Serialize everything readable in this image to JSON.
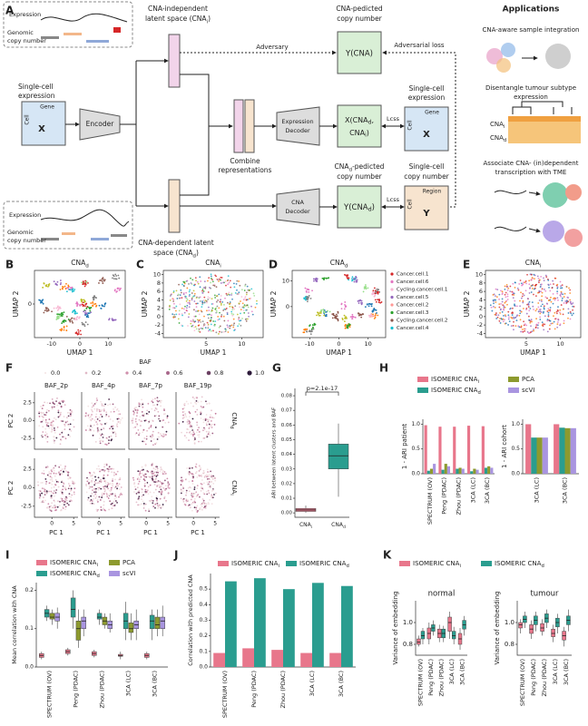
{
  "A": {
    "label": "A",
    "top_inset": [
      "Expression",
      "Genomic",
      "copy number"
    ],
    "bottom_inset": [
      "Expression",
      "Genomic",
      "copy number"
    ],
    "input_title": [
      "Single-cell",
      "expression"
    ],
    "input_gene": "Gene",
    "input_cell": "Cell",
    "input_symbol": "X",
    "encoder": "Encoder",
    "latent_i": [
      "CNA-independent",
      [
        "latent space (CNA",
        "i",
        ")"
      ]
    ],
    "latent_d": [
      "CNA-dependent latent",
      [
        "space (CNA",
        "d",
        ")"
      ]
    ],
    "adversary": "Adversary",
    "adversarial_loss": "Adversarial loss",
    "y_cna_title": [
      "CNA-pedicted",
      "copy number"
    ],
    "y_cna": "Y(CNA)",
    "combine": [
      "Combine",
      "representations"
    ],
    "expr_decoder": [
      "Expression",
      "Decoder"
    ],
    "x_recon": [
      [
        "X(CNA",
        "d",
        ","
      ],
      [
        "CNA",
        "i",
        ")"
      ]
    ],
    "loss_top": "Lcss",
    "loss_bottom": "Lcss",
    "target_expr_title": [
      "Single-cell",
      "expression"
    ],
    "target_expr_gene": "Gene",
    "target_expr_cell": "Cell",
    "target_expr_symbol": "X",
    "cna_decoder": [
      "CNA",
      "Decoder"
    ],
    "y_cnad_title": [
      [
        "CNA",
        "d",
        "-pedicted"
      ],
      "copy number"
    ],
    "y_cnad": [
      "Y(CNA",
      "d",
      ")"
    ],
    "target_cn_title": [
      "Single-cell",
      "copy number"
    ],
    "target_cn_region": "Region",
    "target_cn_cell": "Cell",
    "target_cn_symbol": "Y",
    "applications": "Applications",
    "app1": "CNA-aware sample integration",
    "app2": [
      "Disentangle tumour subtype",
      "expression"
    ],
    "app2_rows": [
      [
        "CNA",
        "i"
      ],
      [
        "CNA",
        "d"
      ]
    ],
    "app3": [
      "Associate CNA- (in)dependent",
      "transcription with TME"
    ]
  },
  "umap": [
    {
      "label": "B",
      "title": [
        "CNA",
        "d"
      ],
      "xlabel": "UMAP 1",
      "ylabel": "UMAP 2",
      "xlim": [
        -16,
        16
      ],
      "xticks": [
        -10,
        0,
        10
      ],
      "ylim": [
        -12,
        12
      ],
      "yticks": [
        0
      ]
    },
    {
      "label": "C",
      "title": [
        "CNA",
        "i"
      ],
      "xlabel": "UMAP 1",
      "ylabel": "UMAP 2",
      "xlim": [
        -1,
        13
      ],
      "xticks": [
        5,
        10
      ],
      "ylim": [
        -5,
        11
      ],
      "yticks": [
        -4,
        -2,
        0,
        2,
        4,
        6,
        8,
        10
      ]
    },
    {
      "label": "D",
      "title": [
        "CNA",
        "d"
      ],
      "xlabel": "UMAP 1",
      "ylabel": "UMAP 2",
      "xlim": [
        -16,
        16
      ],
      "xticks": [
        -10,
        0,
        10
      ],
      "ylim": [
        -12,
        14
      ],
      "yticks": [
        0,
        10
      ],
      "legend": [
        {
          "name": "Cancer.cell.1",
          "color": "#d62728"
        },
        {
          "name": "Cancer.cell.6",
          "color": "#e377c2"
        },
        {
          "name": "Cycling.cancer.cell.1",
          "color": "#f7b6d2"
        },
        {
          "name": "Cancer.cell.5",
          "color": "#9467bd"
        },
        {
          "name": "Cancer.cell.2",
          "color": "#ff9896"
        },
        {
          "name": "Cancer.cell.3",
          "color": "#2ca02c"
        },
        {
          "name": "Cycling.cancer.cell.2",
          "color": "#8c564b"
        },
        {
          "name": "Cancer.cell.4",
          "color": "#17becf"
        }
      ]
    },
    {
      "label": "E",
      "title": [
        "CNA",
        "i"
      ],
      "xlabel": "UMAP 1",
      "ylabel": "UMAP 2",
      "xlim": [
        -1,
        13
      ],
      "xticks": [
        5,
        10
      ],
      "ylim": [
        -5,
        11
      ],
      "yticks": [
        -4,
        -2,
        0,
        2,
        4,
        6,
        8,
        10
      ]
    }
  ],
  "F": {
    "label": "F",
    "legend_title": "BAF",
    "legend": [
      {
        "value": 0,
        "label": "0.0"
      },
      0.2,
      0.4,
      0.6,
      0.8,
      {
        "value": 1,
        "label": "1.0"
      }
    ],
    "panels": [
      "BAF_2p",
      "BAF_4p",
      "BAF_7p",
      "BAF_19p"
    ],
    "rows": [
      [
        "CNA",
        "d"
      ],
      [
        "CNA",
        "i"
      ]
    ],
    "ylabel": "PC 2",
    "xlabel": "PC 1",
    "xlim": [
      -4,
      6
    ],
    "xticks": [
      0,
      5
    ],
    "ylim": [
      -4,
      4
    ],
    "yticks": [
      2.5,
      {
        "value": 0,
        "label": "0.0"
      },
      -2.5
    ]
  },
  "G": {
    "label": "G",
    "title": "p=2.1e-17",
    "ylabel": "ARI between latent clusters and BAF",
    "ylim": [
      -0.003,
      0.085
    ],
    "yticks": [
      {
        "value": 0,
        "label": "0.00"
      },
      {
        "value": 0.01,
        "label": "0.01"
      },
      {
        "value": 0.02,
        "label": "0.02"
      },
      {
        "value": 0.03,
        "label": "0.03"
      },
      {
        "value": 0.04,
        "label": "0.04"
      },
      {
        "value": 0.05,
        "label": "0.05"
      },
      {
        "value": 0.06,
        "label": "0.06"
      },
      {
        "value": 0.07,
        "label": "0.07"
      },
      {
        "value": 0.08,
        "label": "0.08"
      }
    ],
    "categories": [
      [
        "CNA",
        "i"
      ],
      [
        "CNA",
        "d"
      ]
    ],
    "colors": [
      "#e8768b",
      "#2a9d8f"
    ],
    "boxes": [
      [
        0,
        0.001,
        0.002,
        0.003,
        0.005
      ],
      [
        0.011,
        0.03,
        0.039,
        0.047,
        0.061
      ]
    ]
  },
  "H": {
    "label": "H",
    "legend": [
      {
        "name": [
          "ISOMERIC CNA",
          "i"
        ],
        "color": "#e8768b"
      },
      {
        "name": [
          "ISOMERIC CNA",
          "d"
        ],
        "color": "#2a9d8f"
      },
      {
        "name": "PCA",
        "color": "#8d9a2e"
      },
      {
        "name": "scVI",
        "color": "#a995e0"
      }
    ],
    "ylim": [
      0,
      1.1
    ],
    "yticks": [
      {
        "value": 0,
        "label": "0.0"
      },
      0.5,
      {
        "value": 1,
        "label": "1.0"
      }
    ],
    "charts": [
      {
        "ylabel": "1 - ARI patient",
        "categories": [
          "SPECTRUM (OV)",
          "Peng (PDAC)",
          "Zhou (PDAC)",
          "3CA (LC)",
          "3CA (BC)"
        ],
        "values": [
          [
            0.98,
            0.95,
            0.95,
            0.97,
            0.96
          ],
          [
            0.06,
            0.08,
            0.1,
            0.05,
            0.12
          ],
          [
            0.1,
            0.2,
            0.12,
            0.1,
            0.15
          ],
          [
            0.2,
            0.15,
            0.1,
            0.08,
            0.12
          ]
        ]
      },
      {
        "ylabel": "1 - ARI cohort",
        "categories": [
          "3CA (LC)",
          "3CA (BC)"
        ],
        "values": [
          [
            1.0,
            1.0
          ],
          [
            0.73,
            0.93
          ],
          [
            0.73,
            0.92
          ],
          [
            0.73,
            0.92
          ]
        ]
      }
    ]
  },
  "I": {
    "label": "I",
    "legend": [
      {
        "name": [
          "ISOMERIC CNA",
          "i"
        ],
        "color": "#e8768b"
      },
      {
        "name": [
          "ISOMERIC CNA",
          "d"
        ],
        "color": "#2a9d8f"
      },
      {
        "name": "PCA",
        "color": "#8d9a2e"
      },
      {
        "name": "scVI",
        "color": "#a995e0"
      }
    ],
    "ylabel": "Mean correlation with CNA",
    "categories": [
      "SPECTRUM (OV)",
      "Peng (PDAC)",
      "Zhou (PDAC)",
      "3CA (LC)",
      "3CA (BC)"
    ],
    "ylim": [
      0,
      0.22
    ],
    "yticks": [
      {
        "value": 0,
        "label": "0.0"
      },
      0.1,
      0.2
    ],
    "boxes": [
      [
        [
          0.02,
          0.025,
          0.03,
          0.035,
          0.04
        ],
        [
          0.03,
          0.035,
          0.04,
          0.045,
          0.05
        ],
        [
          0.025,
          0.03,
          0.035,
          0.04,
          0.045
        ],
        [
          0.02,
          0.028,
          0.03,
          0.033,
          0.04
        ],
        [
          0.02,
          0.025,
          0.03,
          0.035,
          0.04
        ]
      ],
      [
        [
          0.12,
          0.13,
          0.14,
          0.15,
          0.16
        ],
        [
          0.1,
          0.13,
          0.15,
          0.18,
          0.2
        ],
        [
          0.11,
          0.125,
          0.13,
          0.14,
          0.15
        ],
        [
          0.07,
          0.1,
          0.12,
          0.14,
          0.17
        ],
        [
          0.07,
          0.1,
          0.12,
          0.135,
          0.15
        ]
      ],
      [
        [
          0.11,
          0.125,
          0.13,
          0.14,
          0.15
        ],
        [
          0.05,
          0.07,
          0.1,
          0.12,
          0.15
        ],
        [
          0.1,
          0.11,
          0.12,
          0.13,
          0.14
        ],
        [
          0.07,
          0.09,
          0.1,
          0.115,
          0.14
        ],
        [
          0.08,
          0.1,
          0.11,
          0.13,
          0.15
        ]
      ],
      [
        [
          0.1,
          0.12,
          0.13,
          0.14,
          0.155
        ],
        [
          0.08,
          0.1,
          0.12,
          0.13,
          0.15
        ],
        [
          0.09,
          0.1,
          0.11,
          0.12,
          0.14
        ],
        [
          0.07,
          0.1,
          0.11,
          0.12,
          0.15
        ],
        [
          0.08,
          0.1,
          0.12,
          0.13,
          0.16
        ]
      ]
    ]
  },
  "J": {
    "label": "J",
    "type": "bar",
    "legend": [
      {
        "name": [
          "ISOMERIC CNA",
          "i"
        ],
        "color": "#e8768b"
      },
      {
        "name": [
          "ISOMERIC CNA",
          "d"
        ],
        "color": "#2a9d8f"
      }
    ],
    "ylabel": "Correlation with predicted CNA",
    "categories": [
      "SPECTRUM (OV)",
      "Peng (PDAC)",
      "Zhou (PDAC)",
      "3CA (LC)",
      "3CA (BC)"
    ],
    "ylim": [
      0,
      0.6
    ],
    "yticks": [
      {
        "value": 0,
        "label": "0.0"
      },
      0.1,
      0.2,
      0.3,
      0.4,
      0.5
    ],
    "values": [
      [
        0.09,
        0.12,
        0.11,
        0.09,
        0.09
      ],
      [
        0.55,
        0.57,
        0.5,
        0.54,
        0.52
      ]
    ]
  },
  "K": {
    "label": "K",
    "legend": [
      {
        "name": [
          "ISOMERIC CNA",
          "i"
        ],
        "color": "#e8768b"
      },
      {
        "name": [
          "ISOMERIC CNA",
          "d"
        ],
        "color": "#2a9d8f"
      }
    ],
    "ylabel": "Variance of embedding",
    "categories": [
      "SPECTRUM (OV)",
      "Peng (PDAC)",
      "Zhou (PDAC)",
      "3CA (LC)",
      "3CA (BC)"
    ],
    "charts": [
      {
        "title": "normal",
        "ylim": [
          0.7,
          1.2
        ],
        "yticks": [
          0.8,
          {
            "value": 1,
            "label": "1.0"
          }
        ],
        "boxes": [
          [
            [
              0.78,
              0.8,
              0.82,
              0.85,
              0.88
            ],
            [
              0.8,
              0.85,
              0.9,
              0.95,
              1.0
            ],
            [
              0.82,
              0.86,
              0.9,
              0.94,
              0.98
            ],
            [
              0.85,
              0.92,
              1.0,
              1.05,
              1.1
            ],
            [
              0.75,
              0.8,
              0.85,
              0.9,
              0.95
            ]
          ],
          [
            [
              0.8,
              0.85,
              0.88,
              0.92,
              0.95
            ],
            [
              0.88,
              0.92,
              0.95,
              0.98,
              1.02
            ],
            [
              0.82,
              0.86,
              0.9,
              0.94,
              0.97
            ],
            [
              0.8,
              0.85,
              0.88,
              0.92,
              0.96
            ],
            [
              0.88,
              0.94,
              0.98,
              1.02,
              1.06
            ]
          ]
        ]
      },
      {
        "title": "tumour",
        "ylim": [
          0.7,
          1.2
        ],
        "yticks": [
          0.8,
          {
            "value": 1,
            "label": "1.0"
          }
        ],
        "boxes": [
          [
            [
              0.9,
              0.95,
              0.98,
              1.0,
              1.03
            ],
            [
              0.85,
              0.9,
              0.94,
              0.98,
              1.02
            ],
            [
              0.88,
              0.92,
              0.95,
              0.99,
              1.03
            ],
            [
              0.82,
              0.87,
              0.9,
              0.94,
              0.98
            ],
            [
              0.78,
              0.84,
              0.88,
              0.92,
              0.96
            ]
          ],
          [
            [
              0.95,
              1.0,
              1.03,
              1.06,
              1.1
            ],
            [
              0.92,
              0.98,
              1.02,
              1.06,
              1.1
            ],
            [
              0.95,
              1.0,
              1.04,
              1.08,
              1.12
            ],
            [
              0.9,
              0.96,
              1.0,
              1.04,
              1.08
            ],
            [
              0.92,
              0.98,
              1.02,
              1.06,
              1.12
            ]
          ]
        ]
      }
    ]
  }
}
